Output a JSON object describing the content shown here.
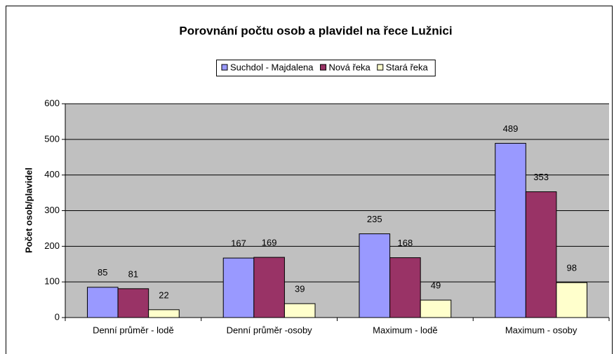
{
  "chart_data": {
    "type": "bar",
    "title": "Porovnání počtu osob a plavidel na řece Lužnici",
    "y_label": "Počet osob/plavidel",
    "categories": [
      "Denní průměr - lodě",
      "Denní průměr -osoby",
      "Maximum - lodě",
      "Maximum - osoby"
    ],
    "series": [
      {
        "name": "Suchdol - Majdalena",
        "color": "#9999ff",
        "values": [
          85,
          167,
          235,
          489
        ]
      },
      {
        "name": "Nová řeka",
        "color": "#993366",
        "values": [
          81,
          169,
          168,
          353
        ]
      },
      {
        "name": "Stará řeka",
        "color": "#ffffcc",
        "values": [
          22,
          39,
          49,
          98
        ]
      }
    ],
    "ylim": [
      0,
      600
    ],
    "yticks": [
      0,
      100,
      200,
      300,
      400,
      500,
      600
    ],
    "grid": true,
    "legend": "top",
    "plot_background": "#c0c0c0"
  }
}
